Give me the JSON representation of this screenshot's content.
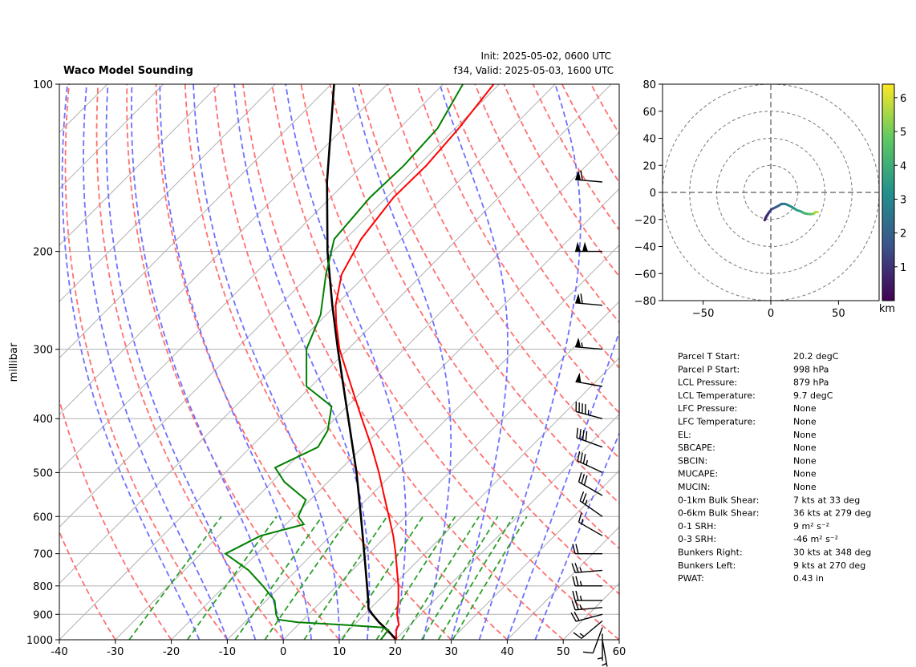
{
  "header": {
    "title": "Waco Model Sounding",
    "init": "Init: 2025-05-02, 0600 UTC",
    "valid": "f34, Valid: 2025-05-03, 1600 UTC"
  },
  "chart_data": [
    {
      "type": "line",
      "subtype": "skew-T log-P sounding",
      "ylabel": "millibar",
      "xlim": [
        -40,
        60
      ],
      "ylim": [
        1000,
        100
      ],
      "yscale": "log",
      "xticks": [
        -40,
        -30,
        -20,
        -10,
        0,
        10,
        20,
        30,
        40,
        50,
        60
      ],
      "yticks": [
        1000,
        900,
        800,
        700,
        600,
        500,
        400,
        300,
        200,
        100
      ],
      "grid": true,
      "colors": {
        "temperature": "#ff0000",
        "dewpoint": "#008000",
        "parcel": "#000000",
        "dry_adiabat": "#ff7070",
        "moist_adiabat": "#7070ff",
        "mixing_ratio": "#2ca02c",
        "isotherm": "#b0b0b0"
      },
      "temperature": {
        "p": [
          1000,
          960,
          940,
          900,
          850,
          800,
          750,
          700,
          650,
          600,
          550,
          500,
          450,
          400,
          350,
          300,
          270,
          250,
          220,
          190,
          160,
          140,
          120,
          100
        ],
        "t": [
          20.2,
          18.4,
          18.0,
          15.8,
          13.6,
          11.0,
          8.0,
          4.8,
          1.2,
          -3.0,
          -7.6,
          -12.6,
          -18.4,
          -25.2,
          -32.8,
          -41.5,
          -46.6,
          -50.0,
          -54.4,
          -57.2,
          -58.8,
          -58.6,
          -59.4,
          -61.0
        ]
      },
      "dewpoint": {
        "p": [
          1000,
          960,
          950,
          940,
          930,
          920,
          900,
          850,
          800,
          750,
          700,
          650,
          620,
          600,
          560,
          520,
          490,
          450,
          420,
          380,
          350,
          300,
          260,
          220,
          190,
          160,
          140,
          120,
          100
        ],
        "td": [
          17.4,
          17.0,
          15.4,
          8.0,
          -0.5,
          -4.5,
          -5.8,
          -8.5,
          -13.2,
          -18.5,
          -25.6,
          -22.5,
          -16.8,
          -19.2,
          -20.8,
          -27.8,
          -32.0,
          -28.0,
          -29.2,
          -32.8,
          -40.8,
          -47.4,
          -51.0,
          -57.2,
          -62.0,
          -63.0,
          -62.6,
          -63.2,
          -66.5
        ]
      },
      "parcel": {
        "p": [
          1000,
          960,
          930,
          900,
          879,
          850,
          800,
          700,
          600,
          500,
          400,
          300,
          250,
          200,
          150,
          100
        ],
        "t": [
          20.2,
          16.8,
          14.0,
          11.4,
          9.7,
          8.2,
          5.4,
          -0.8,
          -8.0,
          -16.6,
          -27.6,
          -41.8,
          -50.6,
          -61.0,
          -73.4,
          -89.5
        ]
      },
      "wind_barbs": {
        "p": [
          1000,
          975,
          950,
          925,
          900,
          875,
          850,
          800,
          750,
          700,
          650,
          600,
          550,
          500,
          450,
          400,
          350,
          300,
          250,
          200,
          150
        ],
        "speed_kts": [
          5,
          5,
          10,
          15,
          20,
          25,
          25,
          25,
          25,
          20,
          15,
          25,
          30,
          35,
          40,
          45,
          50,
          55,
          60,
          100,
          60
        ],
        "direction_deg": [
          170,
          180,
          200,
          230,
          255,
          265,
          270,
          270,
          265,
          270,
          300,
          305,
          300,
          295,
          290,
          285,
          280,
          275,
          275,
          270,
          275
        ]
      }
    },
    {
      "type": "line",
      "subtype": "hodograph",
      "xlim": [
        -80,
        80
      ],
      "ylim": [
        -80,
        80
      ],
      "xticks": [
        -50,
        0,
        50
      ],
      "yticks": [
        -80,
        -60,
        -40,
        -20,
        0,
        20,
        40,
        60,
        80
      ],
      "rings": [
        20,
        40,
        60,
        80
      ],
      "colorbar": {
        "label": "km",
        "range": [
          0,
          6.4
        ],
        "ticks": [
          1,
          2,
          3,
          4,
          5,
          6
        ]
      },
      "points": {
        "u": [
          -1.5,
          -3.5,
          -4.5,
          -3.5,
          -1.2,
          0.5,
          2.5,
          5.5,
          8.0,
          10.5,
          13.0,
          16.0,
          19.0,
          22.0,
          25.0,
          28.0,
          30.5,
          32.0,
          33.0,
          34.5
        ],
        "v": [
          -15.0,
          -18.0,
          -20.5,
          -18.5,
          -14.5,
          -12.5,
          -11.5,
          -10.0,
          -8.5,
          -8.5,
          -9.5,
          -11.0,
          -13.0,
          -14.0,
          -15.5,
          -16.0,
          -16.0,
          -15.5,
          -14.5,
          -14.5
        ],
        "height_km": [
          0.0,
          0.3,
          0.6,
          0.9,
          1.2,
          1.5,
          1.8,
          2.1,
          2.4,
          2.7,
          3.0,
          3.3,
          3.6,
          3.9,
          4.2,
          4.5,
          4.9,
          5.3,
          5.8,
          6.3
        ]
      }
    }
  ],
  "stats": [
    {
      "label": "Parcel T Start:",
      "value": "20.2 degC"
    },
    {
      "label": "Parcel P Start:",
      "value": "998 hPa"
    },
    {
      "label": "LCL Pressure:",
      "value": "879 hPa"
    },
    {
      "label": "LCL Temperature:",
      "value": "9.7 degC"
    },
    {
      "label": "LFC Pressure:",
      "value": "None"
    },
    {
      "label": "LFC Temperature:",
      "value": "None"
    },
    {
      "label": "EL:",
      "value": "None"
    },
    {
      "label": "SBCAPE:",
      "value": "None"
    },
    {
      "label": "SBCIN:",
      "value": "None"
    },
    {
      "label": "MUCAPE:",
      "value": "None"
    },
    {
      "label": "MUCIN:",
      "value": "None"
    },
    {
      "label": "0-1km Bulk Shear:",
      "value": "7 kts at 33 deg"
    },
    {
      "label": "0-6km Bulk Shear:",
      "value": "36 kts at 279 deg"
    },
    {
      "label": "0-1 SRH:",
      "value": "9 m² s⁻²"
    },
    {
      "label": "0-3 SRH:",
      "value": "-46 m² s⁻²"
    },
    {
      "label": "Bunkers Right:",
      "value": "30 kts at 348 deg"
    },
    {
      "label": "Bunkers Left:",
      "value": "9 kts at 270 deg"
    },
    {
      "label": "PWAT:",
      "value": "0.43 in"
    }
  ]
}
